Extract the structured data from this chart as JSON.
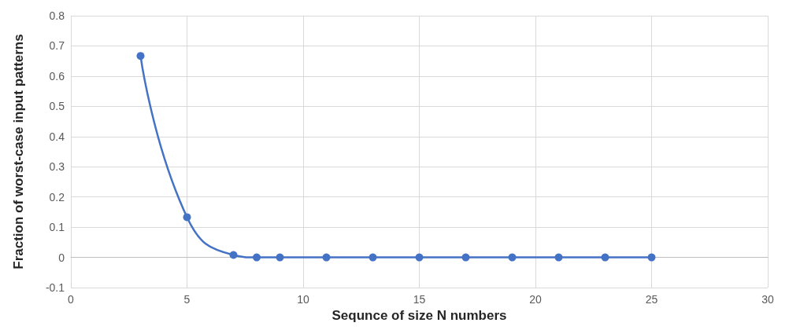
{
  "chart_data": {
    "type": "line",
    "xlabel": "Sequnce of size N numbers",
    "ylabel": "Fraction of worst-case input patterns",
    "x": [
      3,
      5,
      7,
      8,
      9,
      11,
      13,
      15,
      17,
      19,
      21,
      23,
      25
    ],
    "series": [
      {
        "color": "#4472c4",
        "values": [
          0.667,
          0.133,
          0.008,
          0,
          0,
          0,
          0,
          0,
          0,
          0,
          0,
          0,
          0
        ]
      }
    ],
    "xlim": [
      0,
      30
    ],
    "xticks": [
      0,
      5,
      10,
      15,
      20,
      25,
      30
    ],
    "ylim": [
      -0.1,
      0.8
    ],
    "yticks": [
      -0.1,
      0,
      0.1,
      0.2,
      0.3,
      0.4,
      0.5,
      0.6,
      0.7,
      0.8
    ],
    "grid": true,
    "marker": "circle",
    "line_style": "solid"
  }
}
